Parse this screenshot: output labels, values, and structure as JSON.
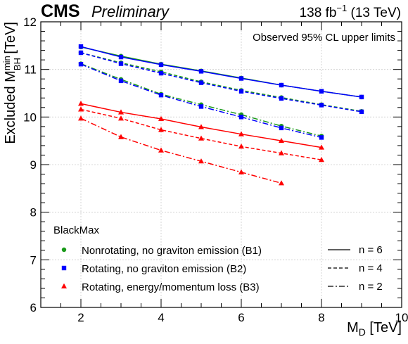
{
  "header": {
    "experiment": "CMS",
    "status": "Preliminary",
    "lumi_value": "138 fb",
    "lumi_exp": "−1",
    "energy": " (13 TeV)"
  },
  "annotation": "Observed 95% CL upper limits",
  "legend": {
    "title": "BlackMax",
    "markers": [
      {
        "label": "Nonrotating, no graviton emission (B1)",
        "color": "#1a9a1a",
        "marker": "circle"
      },
      {
        "label": "Rotating, no graviton emission (B2)",
        "color": "#0000ff",
        "marker": "square"
      },
      {
        "label": "Rotating, energy/momentum loss (B3)",
        "color": "#ff0000",
        "marker": "triangle"
      }
    ],
    "lines": [
      {
        "label": "n = 6",
        "style": "solid"
      },
      {
        "label": "n = 4",
        "style": "dashed"
      },
      {
        "label": "n = 2",
        "style": "dash-dot"
      }
    ]
  },
  "axes": {
    "xlabel_main": "M",
    "xlabel_sub": "D",
    "xlabel_unit": " [TeV]",
    "ylabel_main": "Excluded M",
    "ylabel_sup": "min",
    "ylabel_sub": "BH",
    "ylabel_unit": " [TeV]"
  },
  "chart_data": {
    "type": "line",
    "xlim": [
      1,
      10
    ],
    "ylim": [
      6,
      12
    ],
    "x_ticks": [
      2,
      4,
      6,
      8,
      10
    ],
    "y_ticks": [
      6,
      7,
      8,
      9,
      10,
      11,
      12
    ],
    "grid": true,
    "series": [
      {
        "model": "B1",
        "n": 6,
        "color": "#1a9a1a",
        "marker": "circle",
        "dash": "solid",
        "x": [
          2,
          3,
          4,
          5,
          6,
          7,
          8,
          9
        ],
        "y": [
          11.47,
          11.28,
          11.11,
          10.97,
          10.82,
          10.67,
          10.54,
          10.42
        ]
      },
      {
        "model": "B1",
        "n": 4,
        "color": "#1a9a1a",
        "marker": "circle",
        "dash": "dashed",
        "x": [
          2,
          3,
          4,
          5,
          6,
          7,
          8,
          9
        ],
        "y": [
          11.35,
          11.14,
          10.95,
          10.74,
          10.56,
          10.41,
          10.26,
          10.12
        ]
      },
      {
        "model": "B1",
        "n": 2,
        "color": "#1a9a1a",
        "marker": "circle",
        "dash": "dashdot",
        "x": [
          2,
          3,
          4,
          5,
          6,
          7,
          8
        ],
        "y": [
          11.12,
          10.79,
          10.48,
          10.26,
          10.05,
          9.81,
          9.6
        ]
      },
      {
        "model": "B2",
        "n": 6,
        "color": "#0000ff",
        "marker": "square",
        "dash": "solid",
        "x": [
          2,
          3,
          4,
          5,
          6,
          7,
          8,
          9
        ],
        "y": [
          11.48,
          11.26,
          11.1,
          10.96,
          10.81,
          10.67,
          10.54,
          10.42
        ]
      },
      {
        "model": "B2",
        "n": 4,
        "color": "#0000ff",
        "marker": "square",
        "dash": "dashed",
        "x": [
          2,
          3,
          4,
          5,
          6,
          7,
          8,
          9
        ],
        "y": [
          11.35,
          11.12,
          10.92,
          10.72,
          10.54,
          10.39,
          10.25,
          10.11
        ]
      },
      {
        "model": "B2",
        "n": 2,
        "color": "#0000ff",
        "marker": "square",
        "dash": "dashdot",
        "x": [
          2,
          3,
          4,
          5,
          6,
          7,
          8
        ],
        "y": [
          11.11,
          10.76,
          10.46,
          10.22,
          10.0,
          9.77,
          9.57
        ]
      },
      {
        "model": "B3",
        "n": 6,
        "color": "#ff0000",
        "marker": "triangle",
        "dash": "solid",
        "x": [
          2,
          3,
          4,
          5,
          6,
          7,
          8
        ],
        "y": [
          10.28,
          10.1,
          9.96,
          9.79,
          9.64,
          9.5,
          9.36
        ]
      },
      {
        "model": "B3",
        "n": 4,
        "color": "#ff0000",
        "marker": "triangle",
        "dash": "dashed",
        "x": [
          2,
          3,
          4,
          5,
          6,
          7,
          8
        ],
        "y": [
          10.16,
          9.97,
          9.73,
          9.55,
          9.38,
          9.24,
          9.1
        ]
      },
      {
        "model": "B3",
        "n": 2,
        "color": "#ff0000",
        "marker": "triangle",
        "dash": "dashdot",
        "x": [
          2,
          3,
          4,
          5,
          6,
          7
        ],
        "y": [
          9.97,
          9.58,
          9.3,
          9.07,
          8.84,
          8.61
        ]
      }
    ]
  }
}
